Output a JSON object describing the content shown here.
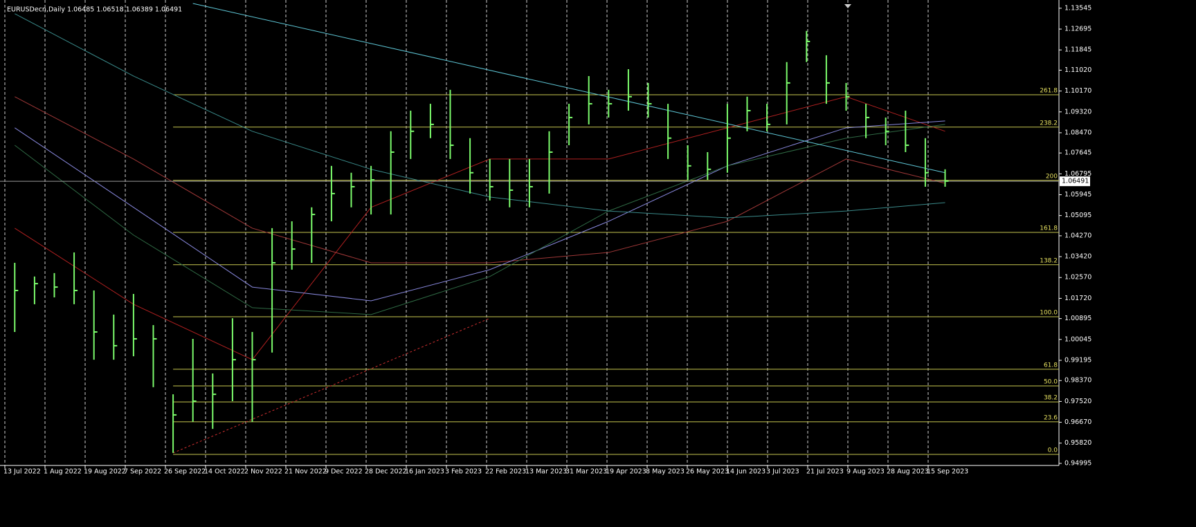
{
  "chart_data": {
    "type": "ohlc",
    "title": "EURUSDecn,Daily  1.06485 1.06518 1.06389 1.06491",
    "color": "#7cfc6c",
    "ylim": [
      0.9491,
      1.1388
    ],
    "yticks": [
      1.13545,
      1.12695,
      1.11845,
      {
        "value": 1.1102,
        "label": "1.11020"
      },
      {
        "value": 1.1017,
        "label": "1.10170"
      },
      {
        "value": 1.0932,
        "label": "1.09320"
      },
      {
        "value": 1.0847,
        "label": "1.08470"
      },
      1.07645,
      1.06795,
      1.05945,
      1.05095,
      {
        "value": 1.0427,
        "label": "1.04270"
      },
      {
        "value": 1.0342,
        "label": "1.03420"
      },
      {
        "value": 1.0257,
        "label": "1.02570"
      },
      {
        "value": 1.0172,
        "label": "1.01720"
      },
      1.00895,
      1.00045,
      0.99195,
      {
        "value": 0.9837,
        "label": "0.98370"
      },
      {
        "value": 0.9752,
        "label": "0.97520"
      },
      {
        "value": 0.9667,
        "label": "0.96670"
      },
      {
        "value": 0.9582,
        "label": "0.95820"
      },
      0.94995
    ],
    "categories": [
      "13 Jul 2022",
      "1 Aug 2022",
      "19 Aug 2022",
      "7 Sep 2022",
      "26 Sep 2022",
      "14 Oct 2022",
      "2 Nov 2022",
      "21 Nov 2022",
      "9 Dec 2022",
      "28 Dec 2022",
      "16 Jan 2023",
      "3 Feb 2023",
      "22 Feb 2023",
      "13 Mar 2023",
      "31 Mar 2023",
      "19 Apr 2023",
      "8 May 2023",
      "26 May 2023",
      "14 Jun 2023",
      "3 Jul 2023",
      "21 Jul 2023",
      "9 Aug 2023",
      "28 Aug 2023",
      "15 Sep 2023"
    ],
    "grid": true,
    "high": [
      1.0317,
      1.0261,
      1.0275,
      1.0359,
      1.0204,
      1.0106,
      1.019,
      1.0063,
      0.9781,
      1.0007,
      0.9866,
      1.0091,
      1.0035,
      1.0458,
      1.0486,
      1.0543,
      1.0712,
      1.0684,
      1.0712,
      1.0853,
      1.0937,
      1.0965,
      1.1022,
      1.0825,
      1.074,
      1.074,
      1.074,
      1.0853,
      1.0965,
      1.1078,
      1.1022,
      1.1106,
      1.105,
      1.0965,
      1.0796,
      1.0768,
      1.0965,
      1.0994,
      1.0965,
      1.1135,
      1.1262,
      1.1163,
      1.105,
      1.0965,
      1.0909,
      1.0937,
      1.0825,
      1.0698
    ],
    "low": [
      1.0035,
      1.0148,
      1.0176,
      1.0148,
      0.9922,
      0.9922,
      0.9936,
      0.981,
      0.9542,
      0.9669,
      0.964,
      0.9753,
      0.9669,
      0.9951,
      1.0289,
      1.0317,
      1.0486,
      1.0543,
      1.0514,
      1.0514,
      1.074,
      1.0825,
      1.074,
      1.0599,
      1.0571,
      1.0543,
      1.0543,
      1.0599,
      1.0796,
      1.0881,
      1.0909,
      1.0937,
      1.0909,
      1.074,
      1.0655,
      1.0655,
      1.0684,
      1.0853,
      1.0853,
      1.0881,
      1.1135,
      1.0965,
      1.0937,
      1.0825,
      1.0796,
      1.0768,
      1.0627,
      1.0627
    ],
    "close": [
      1.0204,
      1.0232,
      1.0218,
      1.0204,
      1.0035,
      0.9979,
      1.0007,
      1.0007,
      0.9697,
      0.9753,
      0.9781,
      0.9922,
      0.9922,
      1.0317,
      1.0373,
      1.0514,
      1.0599,
      1.0627,
      1.0655,
      1.0768,
      1.0853,
      1.0881,
      1.0796,
      1.0684,
      1.0627,
      1.0613,
      1.0627,
      1.0768,
      1.0909,
      1.0965,
      1.0965,
      1.0994,
      1.0965,
      1.0825,
      1.0712,
      1.0698,
      1.0825,
      1.0937,
      1.0881,
      1.105,
      1.1219,
      1.105,
      1.0994,
      1.0909,
      1.0853,
      1.0796,
      1.0684,
      1.065
    ],
    "current_price": 1.06491,
    "moving_averages": [
      {
        "color": "#b02020",
        "x": [
          0,
          6,
          12,
          18,
          24,
          30,
          36,
          42,
          47
        ],
        "values": [
          1.0458,
          1.0148,
          0.9922,
          1.0543,
          1.074,
          1.074,
          1.0867,
          1.0994,
          1.0853
        ]
      },
      {
        "color": "#a03838",
        "x": [
          0,
          6,
          12,
          18,
          24,
          30,
          36,
          42,
          47
        ],
        "values": [
          1.0994,
          1.074,
          1.0458,
          1.0317,
          1.0317,
          1.0359,
          1.0486,
          1.074,
          1.0641
        ]
      },
      {
        "color": "#8888dd",
        "x": [
          0,
          6,
          12,
          18,
          24,
          30,
          36,
          42,
          47
        ],
        "values": [
          1.0867,
          1.0543,
          1.0218,
          1.0162,
          1.0289,
          1.0486,
          1.0712,
          1.0867,
          1.0895
        ]
      },
      {
        "color": "#2f6a44",
        "x": [
          0,
          6,
          12,
          18,
          24,
          30,
          36,
          42,
          47
        ],
        "values": [
          1.0796,
          1.043,
          1.0134,
          1.0106,
          1.0261,
          1.0528,
          1.0712,
          1.0825,
          1.0881
        ]
      },
      {
        "color": "#3a8a8a",
        "x": [
          0,
          6,
          12,
          18,
          24,
          30,
          36,
          42,
          47
        ],
        "values": [
          1.1332,
          1.1078,
          1.0853,
          1.0698,
          1.0585,
          1.0528,
          1.05,
          1.0528,
          1.0562
        ]
      }
    ],
    "trendlines": [
      {
        "color": "#5fc8d8",
        "dashed": false,
        "x": [
          9,
          47
        ],
        "values": [
          1.1374,
          1.0684
        ]
      },
      {
        "color": "#d03030",
        "dashed": true,
        "x": [
          8,
          24
        ],
        "values": [
          0.9542,
          1.0091
        ]
      }
    ],
    "fibonacci": {
      "color": "#c8c850",
      "start": 8,
      "levels": [
        {
          "label": "261.8",
          "price": 1.1002
        },
        {
          "label": "238.2",
          "price": 1.087
        },
        {
          "label": "200",
          "price": 1.0653
        },
        {
          "label": "161.8",
          "price": 1.0441
        },
        {
          "label": "138.2",
          "price": 1.0309
        },
        {
          "label": "100.0",
          "price": 1.0097
        },
        {
          "label": "61.8",
          "price": 0.9883
        },
        {
          "label": "50.0",
          "price": 0.9815
        },
        {
          "label": "38.2",
          "price": 0.975
        },
        {
          "label": "23.6",
          "price": 0.9669
        },
        {
          "label": "0.0",
          "price": 0.9536
        }
      ]
    }
  }
}
